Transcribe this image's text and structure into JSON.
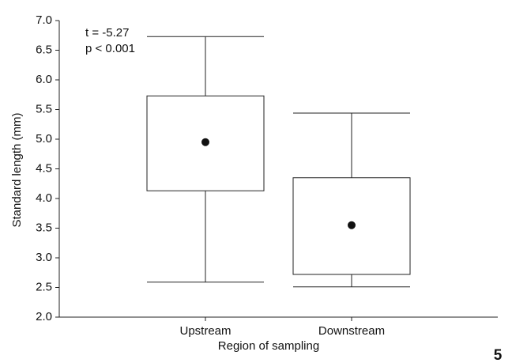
{
  "chart_data": {
    "type": "box",
    "categories": [
      "Upstream",
      "Downstream"
    ],
    "whisker_high": [
      6.73,
      5.44
    ],
    "box_high": [
      5.73,
      4.35
    ],
    "box_low": [
      4.13,
      2.72
    ],
    "whisker_low": [
      2.59,
      2.51
    ],
    "mean": [
      4.95,
      3.55
    ],
    "ylim": [
      2,
      7
    ],
    "yticks": [
      {
        "value": 2,
        "label": "2.0"
      },
      2.5,
      {
        "value": 3,
        "label": "3.0"
      },
      3.5,
      {
        "value": 4,
        "label": "4.0"
      },
      4.5,
      {
        "value": 5,
        "label": "5.0"
      },
      5.5,
      {
        "value": 6,
        "label": "6.0"
      },
      6.5,
      {
        "value": 7,
        "label": "7.0"
      }
    ],
    "y_label": "Standard length (mm)",
    "x_label": "Region of sampling",
    "annotations": [
      "t = -5.27",
      "p < 0.001"
    ],
    "panel_label": "5"
  }
}
